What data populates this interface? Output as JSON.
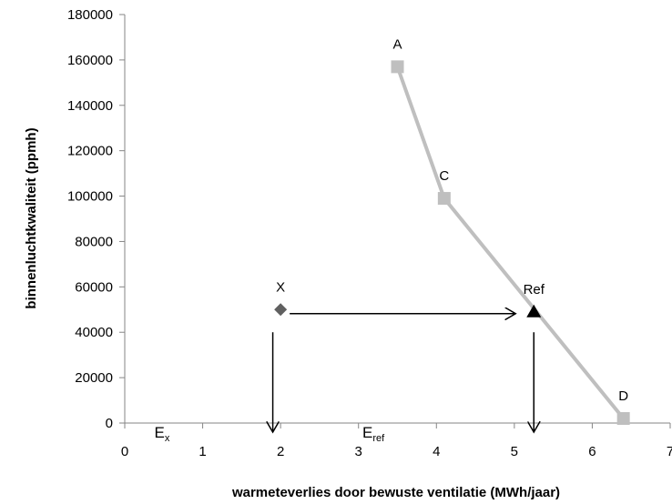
{
  "chart_data": {
    "type": "scatter",
    "title": "",
    "xlabel": "warmeteverlies  door bewuste ventilatie (MWh/jaar)",
    "ylabel": "binnenluchtkwaliteit (ppmh)",
    "xlim": [
      0,
      7
    ],
    "ylim": [
      0,
      180000
    ],
    "x_ticks": [
      "0",
      "1",
      "2",
      "3",
      "4",
      "5",
      "6",
      "7"
    ],
    "y_ticks": [
      "0",
      "20000",
      "40000",
      "60000",
      "80000",
      "100000",
      "120000",
      "140000",
      "160000",
      "180000"
    ],
    "grid": false,
    "legend": "none",
    "series": [
      {
        "marker": "square",
        "color": "#bfbfbf",
        "connected": true,
        "points": [
          {
            "label": "A",
            "x": 3.5,
            "y": 157000
          },
          {
            "label": "C",
            "x": 4.1,
            "y": 99000
          },
          {
            "label": "D",
            "x": 6.4,
            "y": 2000
          }
        ]
      },
      {
        "marker": "triangle",
        "color": "#000000",
        "points": [
          {
            "label": "Ref",
            "x": 5.25,
            "y": 49000
          }
        ]
      },
      {
        "marker": "diamond",
        "color": "#606060",
        "points": [
          {
            "label": "X",
            "x": 2.0,
            "y": 50000
          }
        ]
      }
    ],
    "annotations": {
      "horizontal_arrow": {
        "from": [
          2.0,
          45000
        ],
        "to": [
          5.25,
          45000
        ]
      },
      "vertical_arrows": [
        {
          "x": 1.9,
          "from_y": 40000,
          "to_y": 0
        },
        {
          "x": 5.25,
          "from_y": 40000,
          "to_y": 0
        }
      ],
      "e_x": {
        "base": "E",
        "sub": "x",
        "x": 0.38
      },
      "e_ref": {
        "base": "E",
        "sub": "ref",
        "x": 3.05
      }
    }
  }
}
